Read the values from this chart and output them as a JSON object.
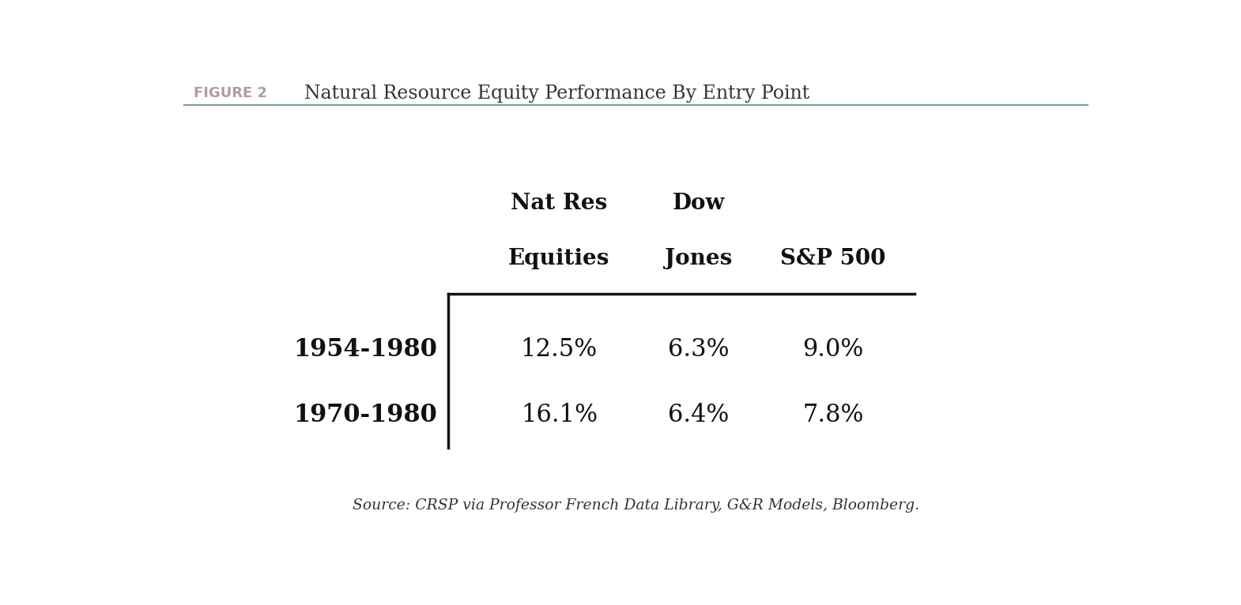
{
  "figure_label": "FIGURE 2",
  "figure_label_color": "#b09aaa",
  "title": "Natural Resource Equity Performance By Entry Point",
  "title_color": "#333333",
  "col_headers": [
    [
      "Nat Res",
      "Equities"
    ],
    [
      "Dow",
      "Jones"
    ],
    [
      "",
      "S&P 500"
    ]
  ],
  "row_headers": [
    "1954-1980",
    "1970-1980"
  ],
  "data": [
    [
      "12.5%",
      "6.3%",
      "9.0%"
    ],
    [
      "16.1%",
      "6.4%",
      "7.8%"
    ]
  ],
  "source_text": "Source: CRSP via Professor French Data Library, G&R Models, Bloomberg.",
  "bg_color": "#ffffff",
  "header_line_color": "#111111",
  "row_header_color": "#111111",
  "data_color": "#111111",
  "col_header_color": "#111111",
  "source_color": "#333333",
  "top_line_color": "#7a9a9a"
}
